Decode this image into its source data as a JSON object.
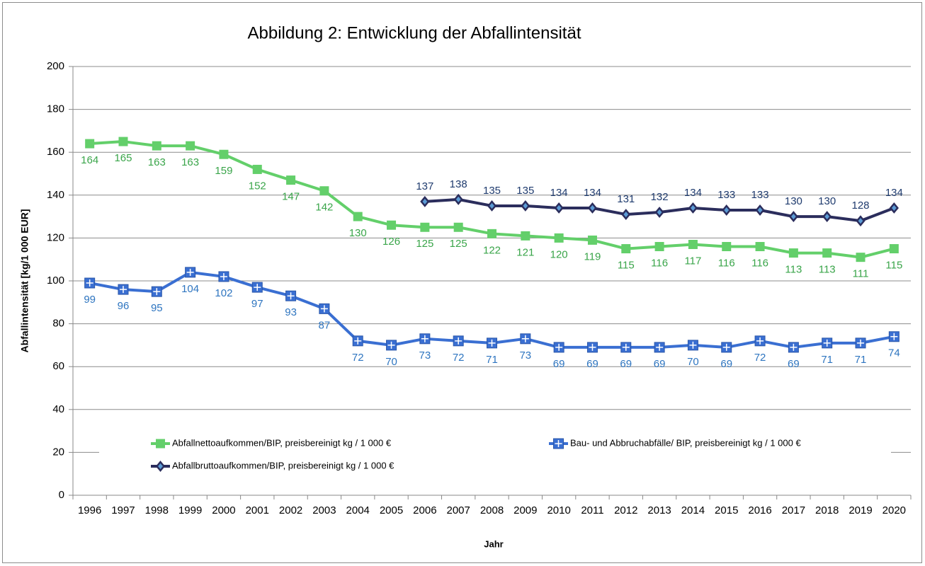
{
  "chart_data": {
    "type": "line",
    "title": "Abbildung 2: Entwicklung der Abfallintensität",
    "x_label": "Jahr",
    "y_label": "Abfallintensität [kg/1 000 EUR]",
    "categories": [
      "1996",
      "1997",
      "1998",
      "1999",
      "2000",
      "2001",
      "2002",
      "2003",
      "2004",
      "2005",
      "2006",
      "2007",
      "2008",
      "2009",
      "2010",
      "2011",
      "2012",
      "2013",
      "2014",
      "2015",
      "2016",
      "2017",
      "2018",
      "2019",
      "2020"
    ],
    "ylim": [
      0,
      200
    ],
    "yticks": [
      0,
      20,
      40,
      60,
      80,
      100,
      120,
      140,
      160,
      180,
      200
    ],
    "grid": true,
    "series": [
      {
        "name": "Abfallnettoaufkommen/BIP, preisbereinigt kg / 1 000 €",
        "color": "#63cf6a",
        "marker": "square",
        "values": [
          164,
          165,
          163,
          163,
          159,
          152,
          147,
          142,
          130,
          126,
          125,
          125,
          122,
          121,
          120,
          119,
          115,
          116,
          117,
          116,
          116,
          113,
          113,
          111,
          115
        ]
      },
      {
        "name": "Bau- und Abbruchabfälle/ BIP, preisbereinigt kg / 1 000 €",
        "color": "#3a6fd2",
        "marker": "plus-square",
        "values": [
          99,
          96,
          95,
          104,
          102,
          97,
          93,
          87,
          72,
          70,
          73,
          72,
          71,
          73,
          69,
          69,
          69,
          69,
          70,
          69,
          72,
          69,
          71,
          71,
          74
        ]
      },
      {
        "name": "Abfallbruttoaufkommen/BIP, preisbereinigt kg / 1 000 €",
        "color": "#2b2d5c",
        "marker": "diamond",
        "values": [
          null,
          null,
          null,
          null,
          null,
          null,
          null,
          null,
          null,
          null,
          137,
          138,
          135,
          135,
          134,
          134,
          131,
          132,
          134,
          133,
          133,
          130,
          130,
          128,
          134
        ]
      }
    ]
  }
}
